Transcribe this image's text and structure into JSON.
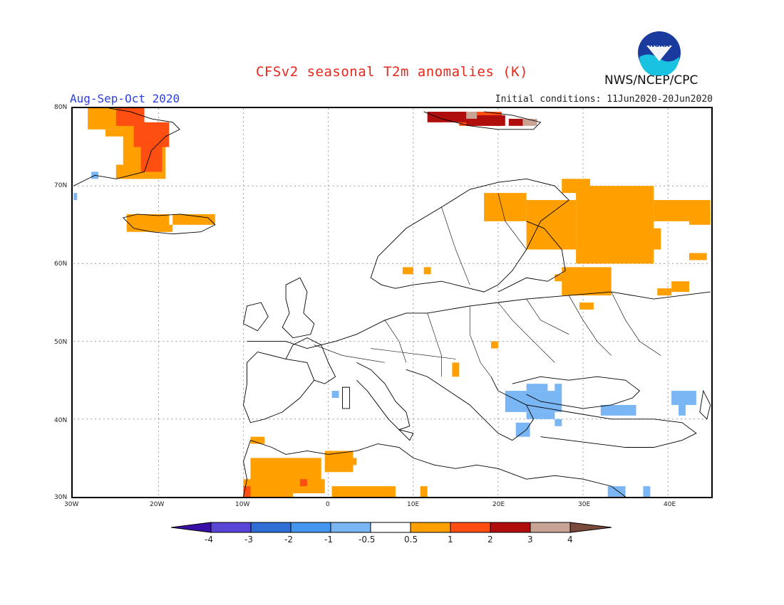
{
  "title": "CFSv2 seasonal T2m anomalies (K)",
  "season": "Aug-Sep-Oct 2020",
  "initial_conditions": "Initial conditions: 11Jun2020-20Jun2020",
  "agency": "NWS/NCEP/CPC",
  "logo_text": "NOAA",
  "map": {
    "lon_labels": [
      "30W",
      "20W",
      "10W",
      "0",
      "10E",
      "20E",
      "30E",
      "40E"
    ],
    "lat_labels": [
      "80N",
      "70N",
      "60N",
      "50N",
      "40N",
      "30N"
    ]
  },
  "colorbar": {
    "labels": [
      "-4",
      "-3",
      "-2",
      "-1",
      "-0.5",
      "0.5",
      "1",
      "2",
      "3",
      "4"
    ],
    "colors": {
      "lt_neg4": "#3a0fa8",
      "neg4_neg3": "#5a46d6",
      "neg3_neg2": "#2f6fd6",
      "neg2_neg1": "#4596ee",
      "neg1_neg05": "#79b6f3",
      "neutral": "#ffffff",
      "p05_p1": "#ffa000",
      "p1_p2": "#ff4e12",
      "p2_p3": "#b00d0d",
      "p3_p4": "#c9a394",
      "gt_p4": "#7a4a3a"
    }
  }
}
